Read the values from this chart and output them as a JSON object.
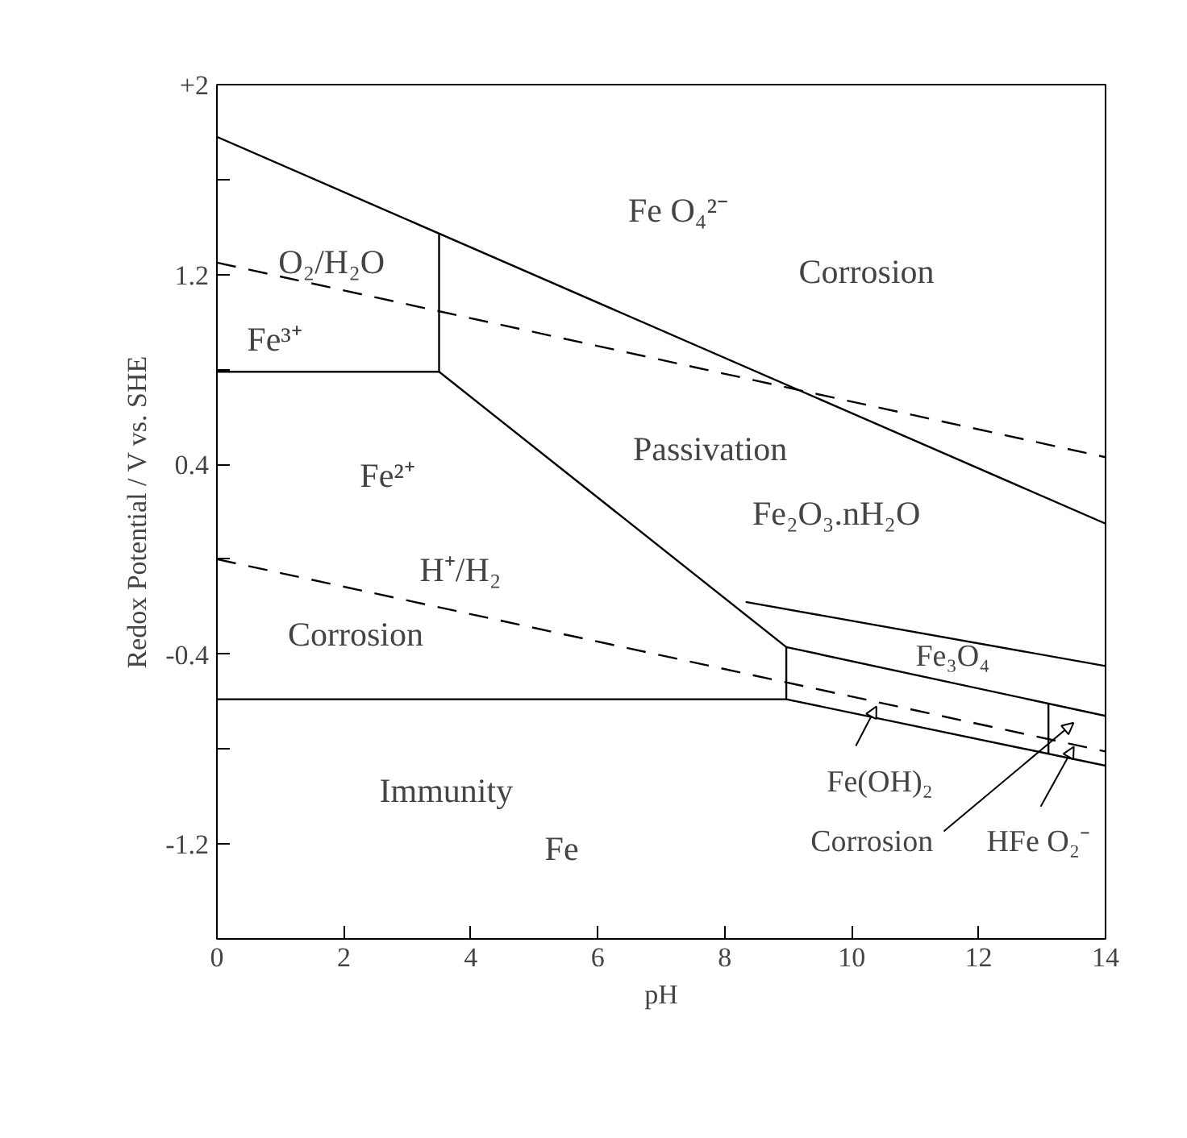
{
  "chart_data": {
    "type": "line",
    "xlabel": "pH",
    "ylabel": "Redox Potential / V vs. SHE",
    "xlim": [
      0,
      14
    ],
    "ylim": [
      -1.6,
      2
    ],
    "xticks": [
      0,
      2,
      4,
      6,
      8,
      10,
      12,
      14
    ],
    "yticks": [
      {
        "value": 2,
        "label": "+2"
      },
      {
        "value": 1.6,
        "label": null
      },
      1.2,
      {
        "value": 0.8,
        "label": null
      },
      0.4,
      {
        "value": 0,
        "label": null
      },
      -0.4,
      {
        "value": -0.8,
        "label": null
      },
      -1.2
    ],
    "grid": false,
    "marker": "none",
    "series": [
      {
        "color": "#000000",
        "line_style": "solid",
        "x": [
          0,
          14
        ],
        "values": [
          1.78,
          0.15
        ]
      },
      {
        "color": "#000000",
        "line_style": "solid",
        "x": [
          0,
          3.5,
          3.5
        ],
        "values": [
          0.79,
          0.79,
          1.37
        ]
      },
      {
        "color": "#000000",
        "line_style": "solid",
        "x": [
          3.5,
          8.97
        ],
        "values": [
          0.79,
          -0.37
        ]
      },
      {
        "color": "#000000",
        "line_style": "solid",
        "x": [
          0,
          8.97,
          8.97
        ],
        "values": [
          -0.59,
          -0.59,
          -0.37
        ]
      },
      {
        "color": "#000000",
        "line_style": "solid",
        "x": [
          8.33,
          14
        ],
        "values": [
          -0.18,
          -0.45
        ]
      },
      {
        "color": "#000000",
        "line_style": "solid",
        "x": [
          8.97,
          14
        ],
        "values": [
          -0.37,
          -0.66
        ]
      },
      {
        "color": "#000000",
        "line_style": "solid",
        "x": [
          8.97,
          14
        ],
        "values": [
          -0.59,
          -0.87
        ]
      },
      {
        "color": "#000000",
        "line_style": "solid",
        "x": [
          13.1,
          13.1
        ],
        "values": [
          -0.61,
          -0.82
        ]
      },
      {
        "color": "#000000",
        "line_style": "dashed",
        "x": [
          0,
          14
        ],
        "values": [
          1.25,
          0.43
        ]
      },
      {
        "color": "#000000",
        "line_style": "dashed",
        "x": [
          0,
          14
        ],
        "values": [
          0.0,
          -0.81
        ]
      }
    ],
    "annotations": [
      "O₂/H₂O",
      "Fe³⁺",
      "Fe O₄²⁻",
      "Corrosion",
      "Passivation",
      "Fe₂O₃.nH₂O",
      "Fe²⁺",
      "H⁺/H₂",
      "Corrosion",
      "Immunity",
      "Fe",
      "Fe₃O₄",
      {
        "text": "Fe(OH)₂",
        "x": 10.39,
        "y": -0.62
      },
      "Corrosion",
      {
        "text": "HFe O₂⁻",
        "x": 13.5,
        "y": -0.79
      }
    ]
  }
}
